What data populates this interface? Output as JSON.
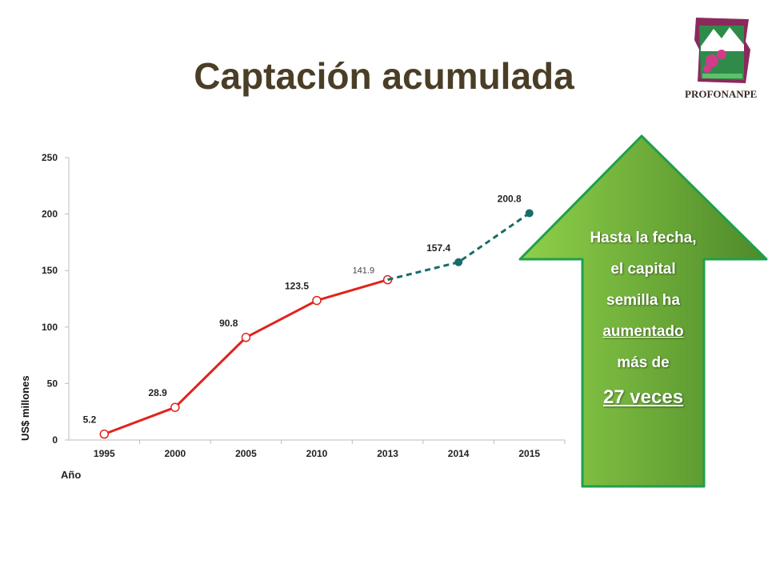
{
  "slide": {
    "title": "Captación acumulada",
    "logo_text": "PROFONANPE"
  },
  "callout": {
    "line1": "Hasta la fecha,",
    "line2": "el capital",
    "line3": "semilla ha",
    "line4": "aumentado",
    "line5": "más de",
    "line6": "27 veces"
  },
  "colors": {
    "historic_line": "#e0231c",
    "projected_line": "#1a6b6b",
    "title": "#4a3e27",
    "arrow_green_dark": "#4e8a2a",
    "arrow_green_light": "#8fd04a"
  },
  "chart_data": {
    "type": "line",
    "xlabel": "Año",
    "ylabel": "US$ millones",
    "ylim": [
      0,
      250
    ],
    "yticks": [
      0,
      50,
      100,
      150,
      200,
      250
    ],
    "grid": false,
    "categories": [
      "1995",
      "2000",
      "2005",
      "2010",
      "2013",
      "2014",
      "2015"
    ],
    "series": [
      {
        "style": "solid",
        "color": "#e0231c",
        "marker": "open-circle",
        "x": [
          "1995",
          "2000",
          "2005",
          "2010",
          "2013"
        ],
        "values": [
          5.2,
          28.9,
          90.8,
          123.5,
          141.9
        ],
        "labels": [
          "5.2",
          "28.9",
          "90.8",
          "123.5",
          "141.9"
        ]
      },
      {
        "style": "dashed",
        "color": "#1a6b6b",
        "marker": "filled-circle",
        "x": [
          "2013",
          "2014",
          "2015"
        ],
        "values": [
          141.9,
          157.4,
          200.8
        ],
        "labels": [
          "",
          "157.4",
          "200.8"
        ]
      }
    ]
  }
}
